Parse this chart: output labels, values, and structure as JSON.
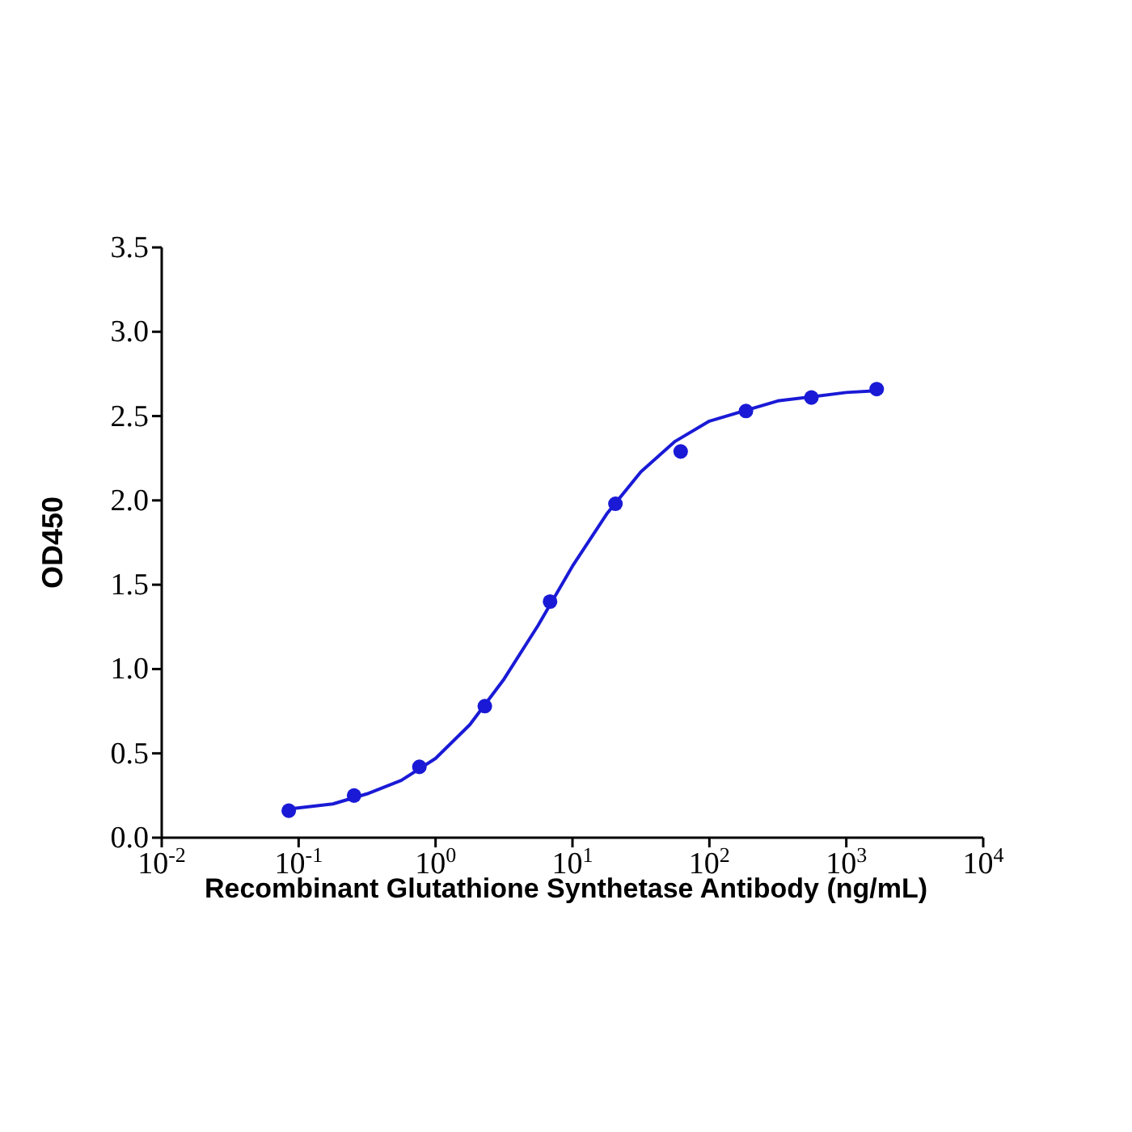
{
  "chart_data": {
    "type": "scatter",
    "xlabel": "Recombinant Glutathione Synthetase Antibody (ng/mL)",
    "ylabel": "OD450",
    "log": "x",
    "xlim": [
      0.01,
      10000
    ],
    "xticks": [
      {
        "value": 0.01,
        "label": "10$^{-2}$"
      },
      {
        "value": 0.1,
        "label": "10$^{-1}$"
      },
      {
        "value": 1,
        "label": "10$^{0}$"
      },
      {
        "value": 10,
        "label": "10$^{1}$"
      },
      {
        "value": 100,
        "label": "10$^{2}$"
      },
      {
        "value": 1000,
        "label": "10$^{3}$"
      },
      {
        "value": 10000,
        "label": "10$^{4}$"
      }
    ],
    "ylim": [
      0,
      3.5
    ],
    "yticks": [
      {
        "value": 0,
        "label": "0.0"
      },
      {
        "value": 0.5,
        "label": "0.5"
      },
      {
        "value": 1,
        "label": "1.0"
      },
      {
        "value": 1.5,
        "label": "1.5"
      },
      {
        "value": 2,
        "label": "2.0"
      },
      {
        "value": 2.5,
        "label": "2.5"
      },
      {
        "value": 3,
        "label": "3.0"
      },
      {
        "value": 3.5,
        "label": "3.5"
      }
    ],
    "grid": false,
    "series": [
      {
        "marker": "circle",
        "color": "#1a1ad6",
        "x": [
          0.0847,
          0.254,
          0.762,
          2.29,
          6.86,
          20.6,
          61.7,
          185,
          556,
          1667
        ],
        "values": [
          0.16,
          0.25,
          0.42,
          0.78,
          1.4,
          1.98,
          2.29,
          2.53,
          2.61,
          2.66
        ]
      },
      {
        "type": "line",
        "marker": "none",
        "line_style": "solid",
        "color": "#1a1ad6",
        "x": [
          0.0851,
          0.178,
          0.316,
          0.562,
          1,
          1.78,
          3.16,
          5.62,
          10,
          17.8,
          31.6,
          56.2,
          100,
          316,
          1000,
          1660
        ],
        "values": [
          0.17,
          0.2,
          0.26,
          0.34,
          0.47,
          0.67,
          0.94,
          1.26,
          1.61,
          1.92,
          2.17,
          2.35,
          2.47,
          2.59,
          2.64,
          2.65
        ]
      }
    ]
  }
}
